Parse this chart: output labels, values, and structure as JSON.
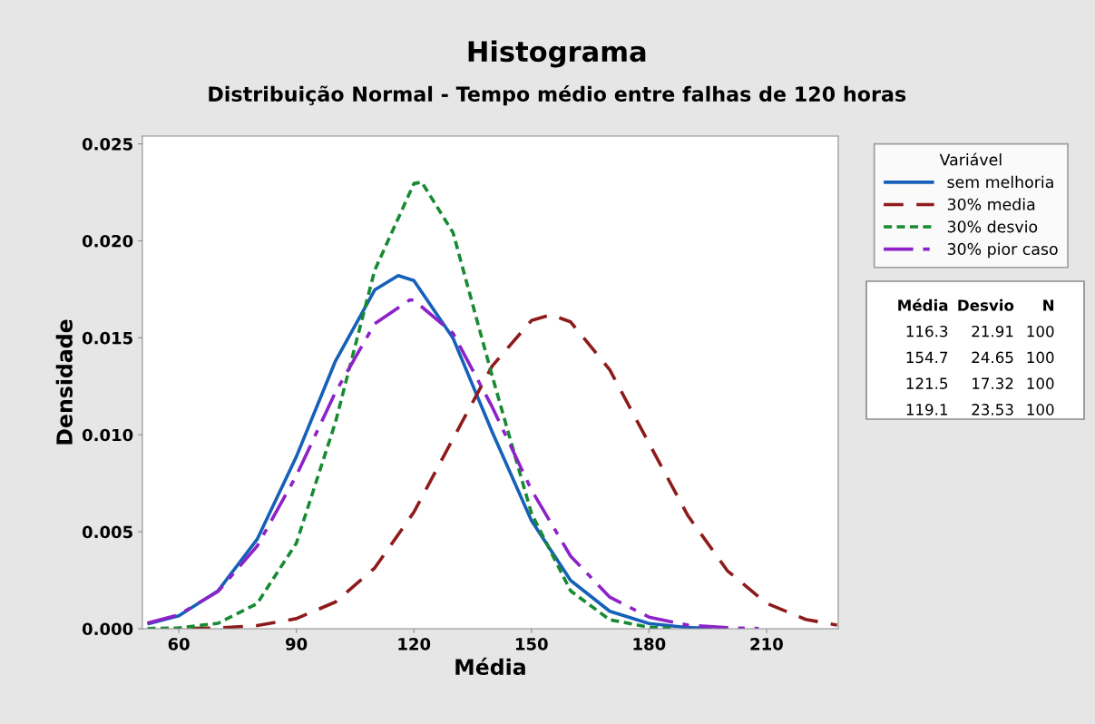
{
  "chart_data": {
    "type": "line",
    "title": "Histograma",
    "subtitle": "Distribuição Normal - Tempo médio entre falhas de 120 horas",
    "xlabel": "Média",
    "ylabel": "Densidade",
    "legend_title": "Variável",
    "legend": "right",
    "grid": false,
    "marker": "none",
    "xlim": [
      50.7,
      228.3
    ],
    "xticks": [
      60,
      90,
      120,
      150,
      180,
      210
    ],
    "ylim": [
      0,
      0.0254
    ],
    "yticks": [
      {
        "value": 0,
        "label": "0.000"
      },
      {
        "value": 0.005,
        "label": "0.005"
      },
      {
        "value": 0.01,
        "label": "0.010"
      },
      {
        "value": 0.015,
        "label": "0.015"
      },
      {
        "value": 0.02,
        "label": "0.020"
      },
      {
        "value": 0.025,
        "label": "0.025"
      }
    ],
    "series": [
      {
        "name": "sem melhoria",
        "color": "#1560b8",
        "line_style": "solid",
        "x": [
          52,
          60,
          70,
          80,
          90,
          100,
          110,
          116,
          120,
          130,
          140,
          150,
          160,
          170,
          180,
          190,
          196
        ],
        "values": [
          0.00025,
          0.00067,
          0.00195,
          0.00461,
          0.00887,
          0.01381,
          0.01747,
          0.01821,
          0.01795,
          0.01498,
          0.01014,
          0.00558,
          0.00249,
          0.0009,
          0.00027,
          6e-05,
          2e-05
        ]
      },
      {
        "name": "30% media",
        "color": "#8e1b1b",
        "line_style": "dashed",
        "x": [
          63,
          70,
          80,
          90,
          100,
          110,
          120,
          130,
          140,
          150,
          155,
          160,
          170,
          180,
          190,
          200,
          210,
          220,
          228
        ],
        "values": [
          2e-05,
          4e-05,
          0.00016,
          0.00052,
          0.00138,
          0.00313,
          0.00601,
          0.0098,
          0.01355,
          0.01589,
          0.01619,
          0.01582,
          0.01335,
          0.00956,
          0.00581,
          0.00299,
          0.00131,
          0.00048,
          0.00019
        ]
      },
      {
        "name": "30% desvio",
        "color": "#178a32",
        "line_style": "dotted",
        "x": [
          52,
          60,
          70,
          80,
          90,
          100,
          110,
          120,
          122,
          130,
          140,
          150,
          160,
          170,
          180,
          186
        ],
        "values": [
          1e-05,
          4e-05,
          0.00028,
          0.0013,
          0.00441,
          0.01066,
          0.01848,
          0.02295,
          0.02303,
          0.02042,
          0.01302,
          0.00595,
          0.00195,
          0.00046,
          8e-05,
          2e-05
        ]
      },
      {
        "name": "30% pior caso",
        "color": "#8c22c8",
        "line_style": "dashdot",
        "x": [
          52,
          60,
          70,
          80,
          90,
          100,
          110,
          119,
          120,
          130,
          140,
          150,
          160,
          170,
          180,
          190,
          200,
          208
        ],
        "values": [
          0.00029,
          0.00072,
          0.00192,
          0.00426,
          0.00789,
          0.0122,
          0.01573,
          0.01696,
          0.01694,
          0.01523,
          0.01143,
          0.00716,
          0.00374,
          0.00163,
          0.0006,
          0.00018,
          5e-05,
          1e-05
        ]
      }
    ],
    "annotations": [
      "Média",
      "Desvio",
      "N",
      "116.3",
      "21.91",
      "100",
      "154.7",
      "24.65",
      "100",
      "121.5",
      "17.32",
      "100",
      "119.1",
      "23.53",
      "100"
    ]
  }
}
